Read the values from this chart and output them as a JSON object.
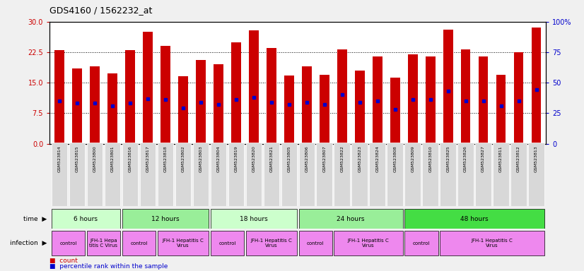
{
  "title": "GDS4160 / 1562232_at",
  "samples": [
    "GSM523814",
    "GSM523815",
    "GSM523800",
    "GSM523801",
    "GSM523816",
    "GSM523817",
    "GSM523818",
    "GSM523802",
    "GSM523803",
    "GSM523804",
    "GSM523819",
    "GSM523820",
    "GSM523821",
    "GSM523805",
    "GSM523806",
    "GSM523807",
    "GSM523822",
    "GSM523823",
    "GSM523824",
    "GSM523808",
    "GSM523809",
    "GSM523810",
    "GSM523825",
    "GSM523826",
    "GSM523827",
    "GSM523811",
    "GSM523812",
    "GSM523813"
  ],
  "counts": [
    23.0,
    18.5,
    19.0,
    17.2,
    23.0,
    27.5,
    24.0,
    16.5,
    20.5,
    19.5,
    25.0,
    27.8,
    23.5,
    16.8,
    19.0,
    17.0,
    23.2,
    18.0,
    21.5,
    16.2,
    22.0,
    21.5,
    28.0,
    23.2,
    21.5,
    17.0,
    22.5,
    28.5
  ],
  "percentile_ranks": [
    35,
    33,
    33,
    31,
    33,
    37,
    36,
    29,
    34,
    32,
    36,
    38,
    34,
    32,
    34,
    32,
    40,
    34,
    35,
    28,
    36,
    36,
    43,
    35,
    35,
    31,
    35,
    44
  ],
  "time_groups": [
    {
      "label": "6 hours",
      "start": 0,
      "end": 4,
      "color": "#ccffcc"
    },
    {
      "label": "12 hours",
      "start": 4,
      "end": 9,
      "color": "#99ee99"
    },
    {
      "label": "18 hours",
      "start": 9,
      "end": 14,
      "color": "#ccffcc"
    },
    {
      "label": "24 hours",
      "start": 14,
      "end": 20,
      "color": "#99ee99"
    },
    {
      "label": "48 hours",
      "start": 20,
      "end": 28,
      "color": "#44dd44"
    }
  ],
  "infection_groups": [
    {
      "label": "control",
      "start": 0,
      "end": 2
    },
    {
      "label": "JFH-1 Hepa\ntitis C Virus",
      "start": 2,
      "end": 4
    },
    {
      "label": "control",
      "start": 4,
      "end": 6
    },
    {
      "label": "JFH-1 Hepatitis C\nVirus",
      "start": 6,
      "end": 9
    },
    {
      "label": "control",
      "start": 9,
      "end": 11
    },
    {
      "label": "JFH-1 Hepatitis C\nVirus",
      "start": 11,
      "end": 14
    },
    {
      "label": "control",
      "start": 14,
      "end": 16
    },
    {
      "label": "JFH-1 Hepatitis C\nVirus",
      "start": 16,
      "end": 20
    },
    {
      "label": "control",
      "start": 20,
      "end": 22
    },
    {
      "label": "JFH-1 Hepatitis C\nVirus",
      "start": 22,
      "end": 28
    }
  ],
  "ylim_left": [
    0,
    30
  ],
  "ylim_right": [
    0,
    100
  ],
  "yticks_left": [
    0,
    7.5,
    15,
    22.5,
    30
  ],
  "yticks_right": [
    0,
    25,
    50,
    75,
    100
  ],
  "bar_color": "#cc0000",
  "dot_color": "#0000cc",
  "tick_bg_color": "#d8d8d8",
  "time_colors": [
    "#ccffcc",
    "#99ee99",
    "#ccffcc",
    "#99ee99",
    "#44dd44"
  ],
  "infection_color": "#ee88ee",
  "bg_color": "#ffffff"
}
